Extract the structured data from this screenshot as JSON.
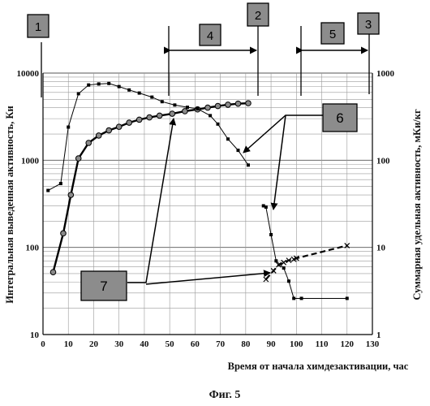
{
  "chart_data": {
    "type": "line",
    "xlabel": "Время от начала химдезактивации, час",
    "ylabel_left": "Интегральная выведенная активность, Ки",
    "ylabel_right": "Суммарная удельная активность, мКи/кг",
    "x_ticks": [
      "0",
      "10",
      "20",
      "30",
      "40",
      "50",
      "60",
      "70",
      "80",
      "90",
      "100",
      "110",
      "120",
      "130"
    ],
    "x_range": [
      0,
      130
    ],
    "y_left_ticks": [
      "10",
      "100",
      "1000",
      "10000"
    ],
    "y_left_range": [
      10,
      10000
    ],
    "y_left_scale": "log",
    "y_right_ticks": [
      "1",
      "10",
      "100",
      "1000"
    ],
    "y_right_range": [
      1,
      1000
    ],
    "y_right_scale": "log",
    "grid": true,
    "series": [
      {
        "marker": "circle",
        "axis": "left",
        "style": "solid-thick",
        "points": [
          [
            4,
            52
          ],
          [
            8,
            145
          ],
          [
            11,
            400
          ],
          [
            14,
            1050
          ],
          [
            18,
            1580
          ],
          [
            22,
            1920
          ],
          [
            26,
            2200
          ],
          [
            30,
            2420
          ],
          [
            34,
            2700
          ],
          [
            38,
            2920
          ],
          [
            42,
            3100
          ],
          [
            46,
            3250
          ],
          [
            51,
            3420
          ],
          [
            56,
            3650
          ],
          [
            61,
            3830
          ],
          [
            65,
            4010
          ],
          [
            69,
            4190
          ],
          [
            73,
            4340
          ],
          [
            77,
            4460
          ],
          [
            81,
            4510
          ]
        ]
      },
      {
        "marker": "square",
        "axis": "left",
        "style": "thin",
        "points": [
          [
            2,
            450
          ],
          [
            7,
            540
          ],
          [
            10,
            2400
          ],
          [
            14,
            5800
          ],
          [
            18,
            7300
          ],
          [
            22,
            7500
          ],
          [
            26,
            7600
          ],
          [
            30,
            7000
          ],
          [
            34,
            6400
          ],
          [
            38,
            5900
          ],
          [
            43,
            5300
          ],
          [
            47,
            4700
          ],
          [
            52,
            4300
          ],
          [
            57,
            4050
          ],
          [
            61,
            3900
          ],
          [
            66,
            3250
          ],
          [
            69,
            2600
          ],
          [
            73,
            1750
          ],
          [
            77,
            1300
          ],
          [
            81,
            880
          ]
        ]
      },
      {
        "marker": "square",
        "axis": "right",
        "style": "thin",
        "points": [
          [
            87,
            30
          ],
          [
            88,
            29
          ],
          [
            90,
            14
          ],
          [
            92,
            7
          ],
          [
            95,
            5.8
          ],
          [
            97,
            4.1
          ],
          [
            99,
            2.6
          ],
          [
            102,
            2.6
          ],
          [
            120,
            2.6
          ]
        ]
      },
      {
        "marker": "cross",
        "axis": "right",
        "style": "dashed",
        "points": [
          [
            88,
            4.3
          ],
          [
            91,
            5.4
          ],
          [
            93,
            6.3
          ],
          [
            95,
            6.7
          ],
          [
            97,
            7.1
          ],
          [
            99,
            7.3
          ],
          [
            100,
            7.5
          ],
          [
            120,
            10.5
          ]
        ]
      }
    ],
    "annotations": [
      {
        "label": "1"
      },
      {
        "label": "2"
      },
      {
        "label": "3"
      },
      {
        "label": "4"
      },
      {
        "label": "5"
      },
      {
        "label": "6"
      },
      {
        "label": "7"
      }
    ],
    "caption": "Фиг. 5"
  }
}
